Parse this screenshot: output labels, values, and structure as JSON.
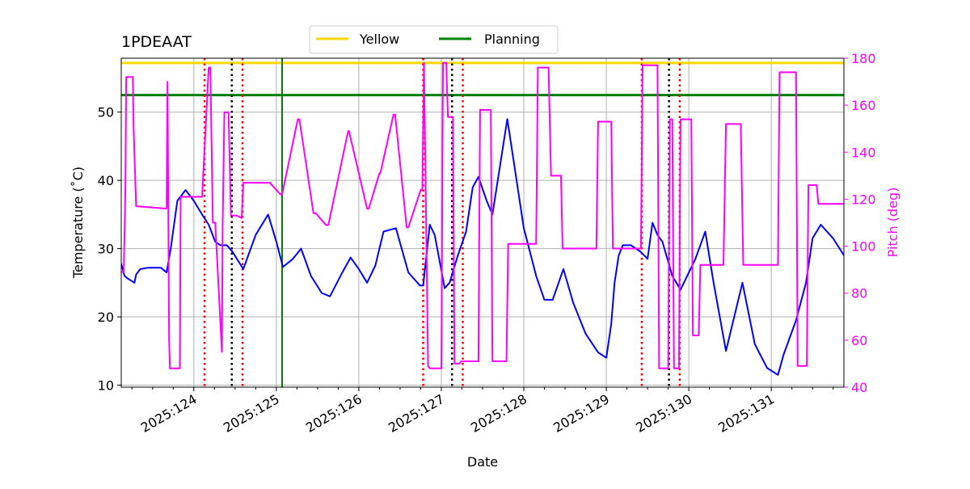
{
  "chart_data": {
    "type": "line",
    "title": "1PDEAAT",
    "xlabel": "Date",
    "ylabel_left": "Temperature ($^\\circ$C)",
    "ylabel_left_display": "Temperature (˚C)",
    "ylabel_right": "Pitch (deg)",
    "xlim": [
      123.12,
      131.88
    ],
    "ylim_left": [
      9.7,
      57.9
    ],
    "ylim_right": [
      40,
      180
    ],
    "grid": true,
    "x_ticks": [
      {
        "value": 124,
        "label": "2025:124"
      },
      {
        "value": 125,
        "label": "2025:125"
      },
      {
        "value": 126,
        "label": "2025:126"
      },
      {
        "value": 127,
        "label": "2025:127"
      },
      {
        "value": 128,
        "label": "2025:128"
      },
      {
        "value": 129,
        "label": "2025:129"
      },
      {
        "value": 130,
        "label": "2025:130"
      },
      {
        "value": 131,
        "label": "2025:131"
      }
    ],
    "y_left_ticks": [
      10,
      20,
      30,
      40,
      50
    ],
    "y_right_ticks": [
      40,
      60,
      80,
      100,
      120,
      140,
      160,
      180
    ],
    "legend": {
      "placement": "top-center",
      "entries": [
        {
          "label": "Yellow",
          "color": "#ffd700"
        },
        {
          "label": "Planning",
          "color": "#008000"
        }
      ]
    },
    "limits": [
      {
        "name": "Yellow",
        "value": 57.2,
        "color": "#ffd700",
        "axis": "left"
      },
      {
        "name": "Planning",
        "value": 52.5,
        "color": "#008000",
        "axis": "left"
      }
    ],
    "vlines": [
      {
        "x": 124.13,
        "color": "#ff0000",
        "style": "dotted"
      },
      {
        "x": 124.46,
        "color": "#000000",
        "style": "dotted"
      },
      {
        "x": 124.59,
        "color": "#ff0000",
        "style": "dotted"
      },
      {
        "x": 125.07,
        "color": "#008000",
        "style": "solid"
      },
      {
        "x": 126.78,
        "color": "#ff0000",
        "style": "dotted"
      },
      {
        "x": 127.13,
        "color": "#000000",
        "style": "dotted"
      },
      {
        "x": 127.26,
        "color": "#ff0000",
        "style": "dotted"
      },
      {
        "x": 129.43,
        "color": "#ff0000",
        "style": "dotted"
      },
      {
        "x": 129.76,
        "color": "#000000",
        "style": "dotted"
      },
      {
        "x": 129.89,
        "color": "#ff0000",
        "style": "dotted"
      }
    ],
    "series": [
      {
        "name": "Temperature",
        "axis": "left",
        "color": "#0000ff",
        "x": [
          123.12,
          123.16,
          123.2,
          123.28,
          123.3,
          123.35,
          123.45,
          123.6,
          123.67,
          123.72,
          123.8,
          123.9,
          124.0,
          124.1,
          124.18,
          124.26,
          124.32,
          124.4,
          124.47,
          124.6,
          124.75,
          124.9,
          125.0,
          125.08,
          125.2,
          125.3,
          125.42,
          125.55,
          125.65,
          125.8,
          125.9,
          126.0,
          126.1,
          126.2,
          126.3,
          126.45,
          126.6,
          126.74,
          126.78,
          126.86,
          126.92,
          127.04,
          127.1,
          127.2,
          127.3,
          127.38,
          127.45,
          127.55,
          127.62,
          127.8,
          128.0,
          128.15,
          128.25,
          128.35,
          128.48,
          128.6,
          128.75,
          128.9,
          129.0,
          129.06,
          129.1,
          129.15,
          129.2,
          129.3,
          129.42,
          129.5,
          129.56,
          129.62,
          129.68,
          129.8,
          129.9,
          129.96,
          130.08,
          130.2,
          130.3,
          130.45,
          130.55,
          130.65,
          130.8,
          130.95,
          131.08,
          131.15,
          131.3,
          131.42,
          131.5,
          131.6,
          131.75,
          131.88
        ],
        "y": [
          27.8,
          26.0,
          25.6,
          25.0,
          26.2,
          27.0,
          27.2,
          27.2,
          26.5,
          30.0,
          37.0,
          38.6,
          37.0,
          35.0,
          33.5,
          31.0,
          30.5,
          30.5,
          29.5,
          27.0,
          32.0,
          35.0,
          31.0,
          27.3,
          28.5,
          30.0,
          26.0,
          23.5,
          23.0,
          26.5,
          28.7,
          27.0,
          25.0,
          27.5,
          32.5,
          33.0,
          26.5,
          24.6,
          24.6,
          33.5,
          32.0,
          24.2,
          25.0,
          29.0,
          32.5,
          39.0,
          40.5,
          37.0,
          35.0,
          49.0,
          33.0,
          26.0,
          22.5,
          22.5,
          27.0,
          22.0,
          17.5,
          14.8,
          14.0,
          19.0,
          25.0,
          29.0,
          30.5,
          30.5,
          29.5,
          28.5,
          33.8,
          32.0,
          31.0,
          26.0,
          24.0,
          25.5,
          28.5,
          32.5,
          25.0,
          15.0,
          20.0,
          25.0,
          16.0,
          12.5,
          11.5,
          14.5,
          19.5,
          25.0,
          31.5,
          33.5,
          31.5,
          29.0
        ]
      },
      {
        "name": "Pitch",
        "axis": "right",
        "color": "#ff00ff",
        "x": [
          123.12,
          123.15,
          123.17,
          123.18,
          123.26,
          123.27,
          123.3,
          123.67,
          123.68,
          123.7,
          123.71,
          123.83,
          123.84,
          124.08,
          124.1,
          124.18,
          124.2,
          124.23,
          124.26,
          124.34,
          124.35,
          124.37,
          124.42,
          124.45,
          124.52,
          124.58,
          124.6,
          124.9,
          124.92,
          125.05,
          125.07,
          125.26,
          125.28,
          125.45,
          125.48,
          125.6,
          125.63,
          125.87,
          125.88,
          126.1,
          126.12,
          126.25,
          126.26,
          126.42,
          126.44,
          126.58,
          126.6,
          126.75,
          126.77,
          126.79,
          126.84,
          126.86,
          127.0,
          127.02,
          127.06,
          127.08,
          127.14,
          127.16,
          127.22,
          127.24,
          127.45,
          127.47,
          127.6,
          127.62,
          127.79,
          127.81,
          128.15,
          128.17,
          128.3,
          128.33,
          128.45,
          128.47,
          128.88,
          128.9,
          129.06,
          129.08,
          129.42,
          129.44,
          129.62,
          129.64,
          129.75,
          129.77,
          129.8,
          129.82,
          129.88,
          129.9,
          130.03,
          130.05,
          130.12,
          130.14,
          130.42,
          130.45,
          130.63,
          130.66,
          131.08,
          131.1,
          131.3,
          131.32,
          131.43,
          131.45,
          131.55,
          131.57,
          131.88
        ],
        "y": [
          89,
          89,
          124,
          172,
          172,
          150,
          117,
          116,
          170,
          60,
          48,
          48,
          121,
          121,
          121,
          176,
          176,
          110,
          110,
          55,
          110,
          157,
          157,
          113,
          113,
          112,
          127,
          127,
          127,
          122,
          122,
          154,
          154,
          114,
          114,
          109,
          109,
          149,
          149,
          116,
          116,
          131,
          131,
          156,
          156,
          108,
          108,
          124,
          124,
          178,
          49,
          48,
          48,
          178,
          178,
          155,
          155,
          50,
          50,
          51,
          51,
          158,
          158,
          51,
          51,
          101,
          101,
          176,
          176,
          130,
          130,
          99,
          99,
          153,
          153,
          99,
          99,
          177,
          177,
          48,
          48,
          154,
          154,
          48,
          48,
          154,
          154,
          62,
          62,
          92,
          92,
          152,
          152,
          92,
          92,
          174,
          174,
          49,
          49,
          126,
          126,
          118,
          118
        ]
      }
    ]
  }
}
